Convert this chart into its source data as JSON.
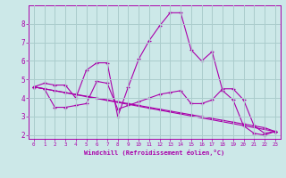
{
  "xlabel": "Windchill (Refroidissement éolien,°C)",
  "bg_color": "#cce8e8",
  "line_color": "#aa00aa",
  "grid_color": "#aacccc",
  "xlim": [
    -0.5,
    23.5
  ],
  "ylim": [
    1.8,
    9.0
  ],
  "yticks": [
    2,
    3,
    4,
    5,
    6,
    7,
    8
  ],
  "xticks": [
    0,
    1,
    2,
    3,
    4,
    5,
    6,
    7,
    8,
    9,
    10,
    11,
    12,
    13,
    14,
    15,
    16,
    17,
    18,
    19,
    20,
    21,
    22,
    23
  ],
  "series": [
    {
      "x": [
        0,
        1,
        2,
        3,
        4,
        5,
        6,
        7,
        8,
        9,
        10,
        11,
        12,
        13,
        14,
        15,
        16,
        17,
        18,
        19,
        20,
        21,
        22,
        23
      ],
      "y": [
        4.6,
        4.8,
        4.7,
        4.7,
        4.0,
        5.5,
        5.9,
        5.9,
        3.0,
        4.6,
        6.1,
        7.1,
        7.9,
        8.6,
        8.6,
        6.6,
        6.0,
        6.5,
        4.4,
        3.9,
        2.5,
        2.1,
        2.0,
        2.2
      ]
    },
    {
      "x": [
        0,
        1,
        2,
        3,
        4,
        5,
        6,
        7,
        8,
        9,
        10,
        11,
        12,
        13,
        14,
        15,
        16,
        17,
        18,
        19,
        20,
        21,
        22,
        23
      ],
      "y": [
        4.6,
        4.5,
        3.5,
        3.5,
        3.6,
        3.7,
        4.9,
        4.8,
        3.4,
        3.6,
        3.8,
        4.0,
        4.2,
        4.3,
        4.4,
        3.7,
        3.7,
        3.9,
        4.5,
        4.5,
        3.9,
        2.5,
        2.1,
        2.2
      ]
    },
    {
      "x": [
        0,
        1,
        2,
        3,
        4,
        5,
        6,
        7,
        8,
        9,
        10,
        11,
        12,
        13,
        14,
        15,
        16,
        17,
        18,
        19,
        20,
        21,
        22,
        23
      ],
      "y": [
        4.6,
        4.5,
        4.4,
        4.3,
        4.2,
        4.1,
        4.0,
        3.9,
        3.8,
        3.7,
        3.6,
        3.5,
        3.4,
        3.3,
        3.2,
        3.1,
        3.0,
        2.9,
        2.8,
        2.7,
        2.6,
        2.5,
        2.4,
        2.2
      ]
    },
    {
      "x": [
        0,
        23
      ],
      "y": [
        4.6,
        2.2
      ]
    }
  ]
}
